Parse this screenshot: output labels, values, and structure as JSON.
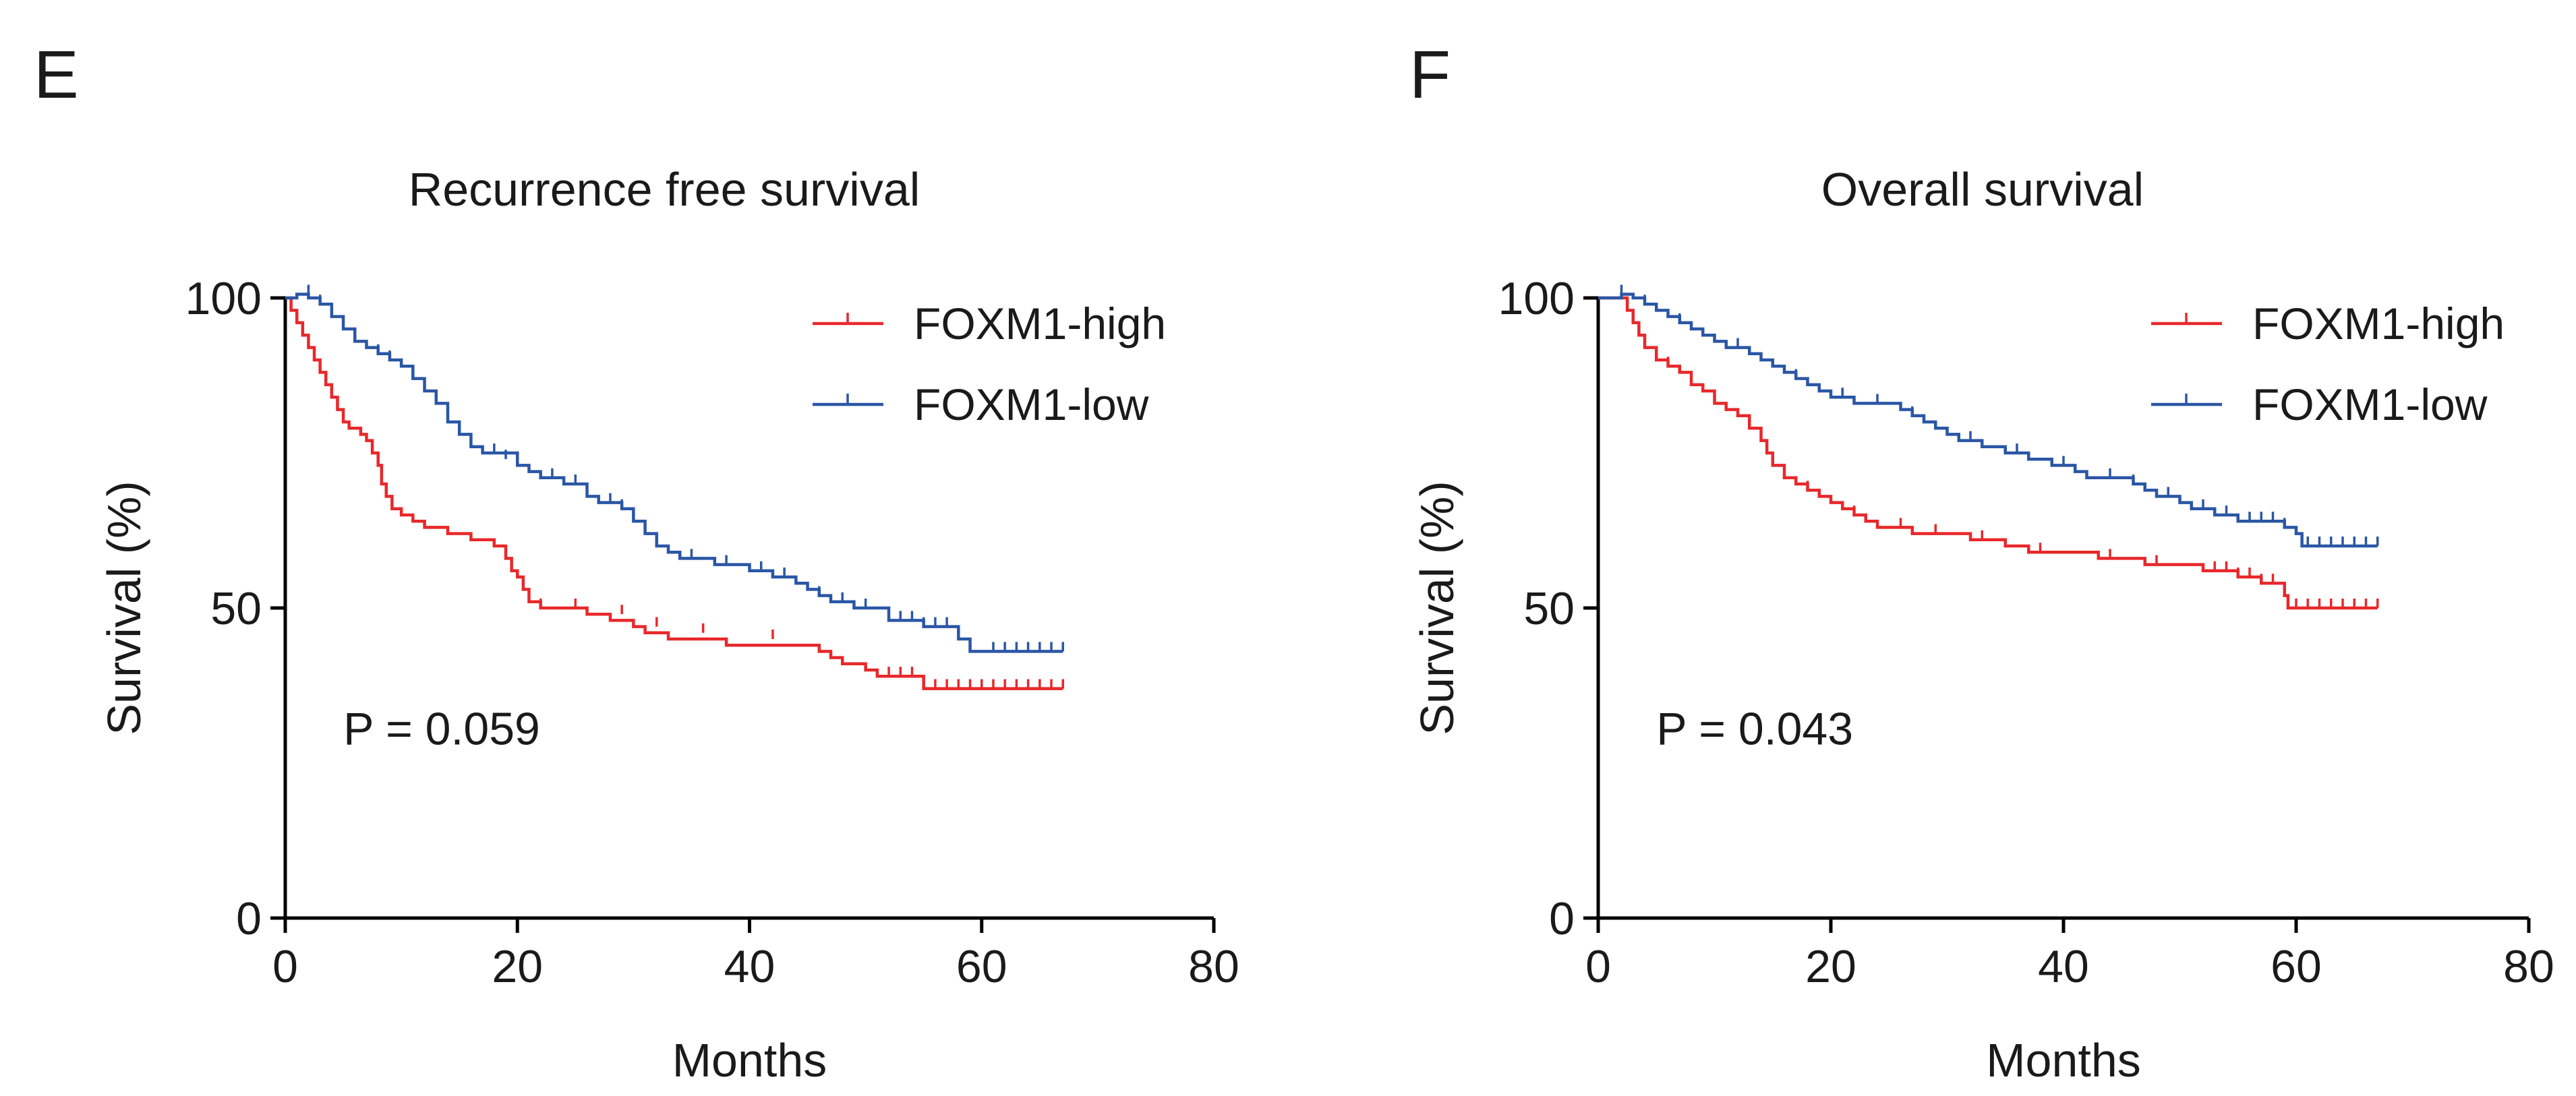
{
  "colors": {
    "high": "#e8282b",
    "low": "#2a56a5",
    "axis": "#000000"
  },
  "chart_data": [
    {
      "type": "line",
      "panel": "E",
      "title": "Recurrence free survival",
      "xlabel": "Months",
      "ylabel": "Survival (%)",
      "xlim": [
        0,
        80
      ],
      "ylim": [
        0,
        100
      ],
      "xticks": [
        0,
        20,
        40,
        60,
        80
      ],
      "yticks": [
        0,
        50,
        100
      ],
      "annotation": "P = 0.059",
      "legend_position": "top-right",
      "series": [
        {
          "name": "FOXM1-high",
          "color_key": "high",
          "steps": [
            [
              0,
              100
            ],
            [
              0.5,
              98
            ],
            [
              1,
              96
            ],
            [
              1.5,
              94
            ],
            [
              2,
              92
            ],
            [
              2.5,
              90
            ],
            [
              3,
              88
            ],
            [
              3.5,
              86
            ],
            [
              4,
              84
            ],
            [
              4.5,
              82
            ],
            [
              5,
              80
            ],
            [
              5.5,
              79
            ],
            [
              6.5,
              78
            ],
            [
              7,
              77
            ],
            [
              7.5,
              75
            ],
            [
              8,
              73
            ],
            [
              8.3,
              70
            ],
            [
              8.7,
              68
            ],
            [
              9.2,
              66
            ],
            [
              10,
              65
            ],
            [
              11,
              64
            ],
            [
              12,
              63
            ],
            [
              14,
              62
            ],
            [
              16,
              61
            ],
            [
              18,
              60
            ],
            [
              19,
              58
            ],
            [
              19.5,
              56
            ],
            [
              20,
              55
            ],
            [
              20.5,
              53
            ],
            [
              21,
              51
            ],
            [
              22,
              50
            ],
            [
              26,
              49
            ],
            [
              28,
              48
            ],
            [
              30,
              47
            ],
            [
              31,
              46
            ],
            [
              33,
              45
            ],
            [
              38,
              44
            ],
            [
              46,
              43
            ],
            [
              47,
              42
            ],
            [
              48,
              41
            ],
            [
              50,
              40
            ],
            [
              51,
              39
            ],
            [
              55,
              37
            ],
            [
              67,
              37
            ]
          ],
          "censored": [
            [
              22,
              50
            ],
            [
              25,
              50
            ],
            [
              29,
              49
            ],
            [
              32,
              47
            ],
            [
              36,
              46
            ],
            [
              42,
              45
            ],
            [
              52,
              39
            ],
            [
              53,
              39
            ],
            [
              54,
              39
            ],
            [
              56,
              37
            ],
            [
              57,
              37
            ],
            [
              58,
              37
            ],
            [
              59,
              37
            ],
            [
              60,
              37
            ],
            [
              61,
              37
            ],
            [
              62,
              37
            ],
            [
              63,
              37
            ],
            [
              64,
              37
            ],
            [
              65,
              37
            ],
            [
              66,
              37
            ],
            [
              67,
              37
            ]
          ]
        },
        {
          "name": "FOXM1-low",
          "color_key": "low",
          "steps": [
            [
              0,
              100
            ],
            [
              1,
              101
            ],
            [
              2,
              100
            ],
            [
              3,
              99
            ],
            [
              4,
              97
            ],
            [
              5,
              95
            ],
            [
              6,
              93
            ],
            [
              7,
              92
            ],
            [
              8,
              91
            ],
            [
              9,
              90
            ],
            [
              10,
              89
            ],
            [
              11,
              87
            ],
            [
              12,
              85
            ],
            [
              13,
              83
            ],
            [
              14,
              80
            ],
            [
              15,
              78
            ],
            [
              16,
              76
            ],
            [
              17,
              75
            ],
            [
              20,
              73
            ],
            [
              21,
              72
            ],
            [
              22,
              71
            ],
            [
              24,
              70
            ],
            [
              26,
              68
            ],
            [
              27,
              67
            ],
            [
              29,
              66
            ],
            [
              30,
              64
            ],
            [
              31,
              62
            ],
            [
              32,
              60
            ],
            [
              33,
              59
            ],
            [
              34,
              58
            ],
            [
              37,
              57
            ],
            [
              40,
              56
            ],
            [
              42,
              55
            ],
            [
              44,
              54
            ],
            [
              45,
              53
            ],
            [
              46,
              52
            ],
            [
              47,
              51
            ],
            [
              49,
              50
            ],
            [
              52,
              48
            ],
            [
              55,
              47
            ],
            [
              58,
              45
            ],
            [
              59,
              43
            ],
            [
              67,
              43
            ]
          ],
          "censored": [
            [
              2,
              101
            ],
            [
              3,
              99
            ],
            [
              8,
              91
            ],
            [
              9,
              90
            ],
            [
              12,
              85
            ],
            [
              13,
              83
            ],
            [
              18,
              75
            ],
            [
              19,
              74
            ],
            [
              23,
              71
            ],
            [
              25,
              70
            ],
            [
              28,
              67
            ],
            [
              29,
              66
            ],
            [
              31,
              62
            ],
            [
              35,
              58
            ],
            [
              38,
              57
            ],
            [
              41,
              56
            ],
            [
              43,
              55
            ],
            [
              46,
              52
            ],
            [
              48,
              51
            ],
            [
              50,
              50
            ],
            [
              53,
              48
            ],
            [
              54,
              48
            ],
            [
              55,
              47
            ],
            [
              56,
              47
            ],
            [
              57,
              47
            ],
            [
              58,
              45
            ],
            [
              61,
              43
            ],
            [
              62,
              43
            ],
            [
              63,
              43
            ],
            [
              64,
              43
            ],
            [
              65,
              43
            ],
            [
              66,
              43
            ],
            [
              67,
              43
            ]
          ]
        }
      ]
    },
    {
      "type": "line",
      "panel": "F",
      "title": "Overall survival",
      "xlabel": "Months",
      "ylabel": "Survival (%)",
      "xlim": [
        0,
        80
      ],
      "ylim": [
        0,
        100
      ],
      "xticks": [
        0,
        20,
        40,
        60,
        80
      ],
      "yticks": [
        0,
        50,
        100
      ],
      "annotation": "P = 0.043",
      "legend_position": "top-right",
      "series": [
        {
          "name": "FOXM1-high",
          "color_key": "high",
          "steps": [
            [
              0,
              100
            ],
            [
              2,
              100
            ],
            [
              2.5,
              98
            ],
            [
              3,
              96
            ],
            [
              3.5,
              94
            ],
            [
              4,
              92
            ],
            [
              5,
              90
            ],
            [
              6,
              89
            ],
            [
              7,
              88
            ],
            [
              8,
              86
            ],
            [
              9,
              85
            ],
            [
              10,
              83
            ],
            [
              11,
              82
            ],
            [
              12,
              81
            ],
            [
              13,
              79
            ],
            [
              14,
              77
            ],
            [
              14.5,
              75
            ],
            [
              15,
              73
            ],
            [
              16,
              71
            ],
            [
              17,
              70
            ],
            [
              18,
              69
            ],
            [
              19,
              68
            ],
            [
              20,
              67
            ],
            [
              21,
              66
            ],
            [
              22,
              65
            ],
            [
              23,
              64
            ],
            [
              24,
              63
            ],
            [
              27,
              62
            ],
            [
              32,
              61
            ],
            [
              35,
              60
            ],
            [
              37,
              59
            ],
            [
              43,
              58
            ],
            [
              47,
              57
            ],
            [
              52,
              56
            ],
            [
              55,
              55
            ],
            [
              57,
              54
            ],
            [
              59,
              52
            ],
            [
              59.3,
              50
            ],
            [
              67,
              50
            ]
          ],
          "censored": [
            [
              5,
              90
            ],
            [
              6,
              89
            ],
            [
              13,
              79
            ],
            [
              18,
              69
            ],
            [
              22,
              65
            ],
            [
              26,
              63
            ],
            [
              29,
              62
            ],
            [
              33,
              61
            ],
            [
              38,
              59
            ],
            [
              44,
              58
            ],
            [
              48,
              57
            ],
            [
              53,
              56
            ],
            [
              54,
              56
            ],
            [
              55,
              55
            ],
            [
              56,
              55
            ],
            [
              57,
              54
            ],
            [
              58,
              54
            ],
            [
              60,
              50
            ],
            [
              61,
              50
            ],
            [
              62,
              50
            ],
            [
              63,
              50
            ],
            [
              64,
              50
            ],
            [
              65,
              50
            ],
            [
              66,
              50
            ],
            [
              67,
              50
            ]
          ]
        },
        {
          "name": "FOXM1-low",
          "color_key": "low",
          "steps": [
            [
              0,
              100
            ],
            [
              2,
              101
            ],
            [
              3,
              100
            ],
            [
              4,
              99
            ],
            [
              5,
              98
            ],
            [
              6,
              97
            ],
            [
              7,
              96
            ],
            [
              8,
              95
            ],
            [
              9,
              94
            ],
            [
              10,
              93
            ],
            [
              11,
              92
            ],
            [
              13,
              91
            ],
            [
              14,
              90
            ],
            [
              15,
              89
            ],
            [
              16,
              88
            ],
            [
              17,
              87
            ],
            [
              18,
              86
            ],
            [
              19,
              85
            ],
            [
              20,
              84
            ],
            [
              22,
              83
            ],
            [
              26,
              82
            ],
            [
              27,
              81
            ],
            [
              28,
              80
            ],
            [
              29,
              79
            ],
            [
              30,
              78
            ],
            [
              31,
              77
            ],
            [
              33,
              76
            ],
            [
              35,
              75
            ],
            [
              37,
              74
            ],
            [
              39,
              73
            ],
            [
              41,
              72
            ],
            [
              42,
              71
            ],
            [
              46,
              70
            ],
            [
              47,
              69
            ],
            [
              48,
              68
            ],
            [
              50,
              67
            ],
            [
              51,
              66
            ],
            [
              53,
              65
            ],
            [
              55,
              64
            ],
            [
              59,
              63
            ],
            [
              60,
              62
            ],
            [
              60.5,
              60
            ],
            [
              67,
              60
            ]
          ],
          "censored": [
            [
              2,
              101
            ],
            [
              4,
              99
            ],
            [
              7,
              96
            ],
            [
              12,
              92
            ],
            [
              17,
              87
            ],
            [
              21,
              84
            ],
            [
              24,
              83
            ],
            [
              27,
              81
            ],
            [
              32,
              77
            ],
            [
              36,
              75
            ],
            [
              40,
              73
            ],
            [
              44,
              71
            ],
            [
              46,
              70
            ],
            [
              49,
              68
            ],
            [
              52,
              66
            ],
            [
              54,
              65
            ],
            [
              56,
              64
            ],
            [
              57,
              64
            ],
            [
              58,
              64
            ],
            [
              59,
              63
            ],
            [
              61,
              60
            ],
            [
              62,
              60
            ],
            [
              63,
              60
            ],
            [
              64,
              60
            ],
            [
              65,
              60
            ],
            [
              66,
              60
            ],
            [
              67,
              60
            ]
          ]
        }
      ]
    }
  ]
}
